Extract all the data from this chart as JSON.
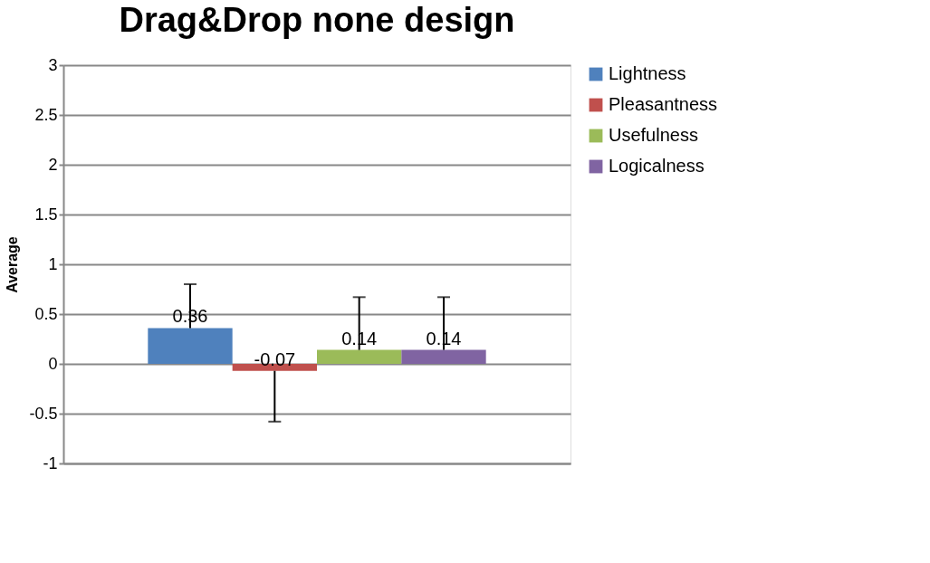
{
  "chart_data": {
    "type": "bar",
    "title": "Drag&Drop none design",
    "ylabel": "Average",
    "categories": [
      null
    ],
    "series": [
      {
        "name": "Lightness",
        "color": "#4f81bd",
        "values": [
          0.36
        ],
        "errors": [
          [
            0.36,
            0.8
          ]
        ]
      },
      {
        "name": "Pleasantness",
        "color": "#c0504d",
        "values": [
          -0.07
        ],
        "errors": [
          [
            -0.58,
            -0.07
          ]
        ]
      },
      {
        "name": "Usefulness",
        "color": "#9bbb59",
        "values": [
          0.14
        ],
        "errors": [
          [
            0.14,
            0.67
          ]
        ]
      },
      {
        "name": "Logicalness",
        "color": "#8064a2",
        "values": [
          0.14
        ],
        "errors": [
          [
            0.14,
            0.67
          ]
        ]
      }
    ],
    "ylim": [
      -1,
      3
    ],
    "yticks": [
      -1,
      -0.5,
      0,
      0.5,
      1,
      1.5,
      2,
      2.5,
      3
    ],
    "grid": "y",
    "legend": "right",
    "data_labels": true,
    "tick_labels": "y"
  }
}
